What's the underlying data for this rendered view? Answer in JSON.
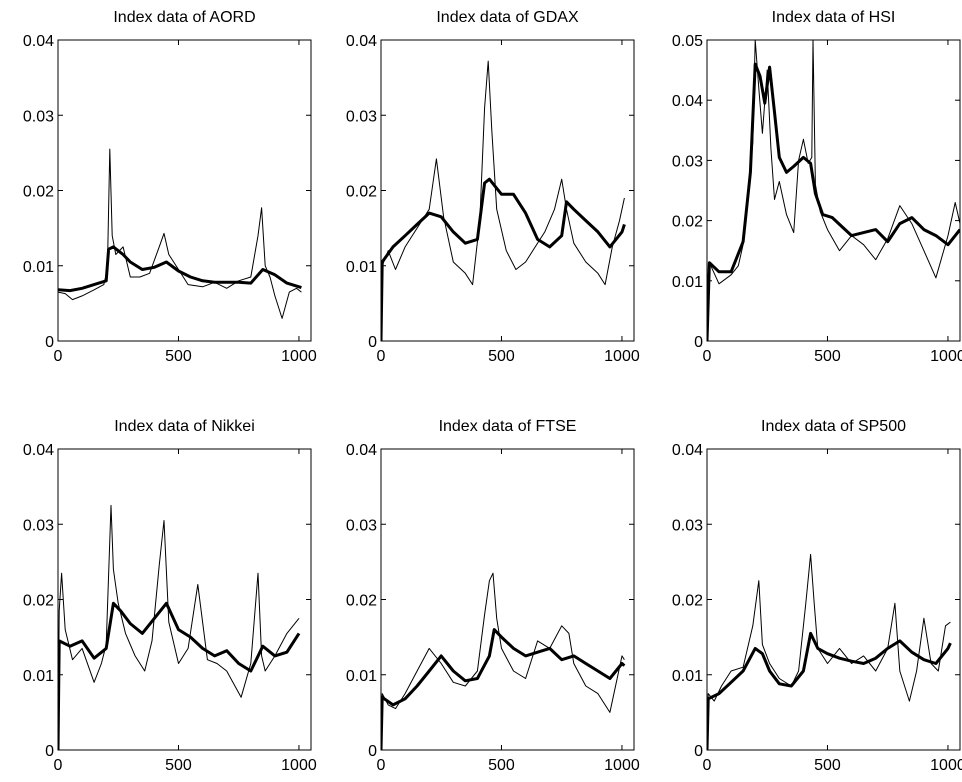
{
  "chart_data": [
    {
      "type": "line",
      "title": "Index data of AORD",
      "xlim": [
        0,
        1050
      ],
      "ylim": [
        0,
        0.04
      ],
      "xticks": [
        0,
        500,
        1000
      ],
      "yticks": [
        0,
        0.01,
        0.02,
        0.03,
        0.04
      ],
      "xtick_labels": [
        "0",
        "500",
        "1000"
      ],
      "ytick_labels": [
        "0",
        "0.01",
        "0.02",
        "0.03",
        "0.04"
      ],
      "grid": false,
      "series": [
        {
          "style": "thin",
          "x": [
            0,
            30,
            60,
            100,
            150,
            190,
            205,
            215,
            225,
            240,
            270,
            300,
            340,
            380,
            420,
            440,
            460,
            500,
            540,
            600,
            650,
            700,
            750,
            800,
            830,
            845,
            860,
            880,
            900,
            930,
            960,
            990,
            1010
          ],
          "y": [
            0.0065,
            0.0063,
            0.0055,
            0.006,
            0.0068,
            0.0075,
            0.0095,
            0.0255,
            0.014,
            0.0115,
            0.0125,
            0.0085,
            0.0085,
            0.009,
            0.0125,
            0.0143,
            0.0115,
            0.0095,
            0.0075,
            0.0072,
            0.0078,
            0.007,
            0.008,
            0.0085,
            0.014,
            0.0177,
            0.01,
            0.0085,
            0.006,
            0.003,
            0.0065,
            0.007,
            0.0065
          ]
        },
        {
          "style": "thick",
          "x": [
            0,
            50,
            100,
            150,
            200,
            210,
            230,
            270,
            300,
            350,
            400,
            450,
            500,
            550,
            600,
            650,
            700,
            750,
            800,
            850,
            900,
            950,
            1000,
            1010
          ],
          "y": [
            0.0068,
            0.0067,
            0.007,
            0.0075,
            0.008,
            0.0122,
            0.0125,
            0.0115,
            0.0105,
            0.0095,
            0.0098,
            0.0105,
            0.0093,
            0.0085,
            0.008,
            0.0078,
            0.0078,
            0.0078,
            0.0077,
            0.0095,
            0.0088,
            0.0077,
            0.0072,
            0.0071
          ]
        }
      ]
    },
    {
      "type": "line",
      "title": "Index data of GDAX",
      "xlim": [
        0,
        1050
      ],
      "ylim": [
        0,
        0.04
      ],
      "xticks": [
        0,
        500,
        1000
      ],
      "yticks": [
        0,
        0.01,
        0.02,
        0.03,
        0.04
      ],
      "xtick_labels": [
        "0",
        "500",
        "1000"
      ],
      "ytick_labels": [
        "0",
        "0.01",
        "0.02",
        "0.03",
        "0.04"
      ],
      "grid": false,
      "series": [
        {
          "style": "thin",
          "x": [
            0,
            5,
            30,
            60,
            100,
            150,
            200,
            230,
            260,
            300,
            350,
            380,
            410,
            430,
            445,
            460,
            480,
            520,
            560,
            600,
            640,
            680,
            720,
            750,
            770,
            800,
            850,
            900,
            930,
            960,
            990,
            1010
          ],
          "y": [
            0.0,
            0.01,
            0.012,
            0.0095,
            0.0125,
            0.015,
            0.0175,
            0.0242,
            0.0165,
            0.0105,
            0.009,
            0.0075,
            0.016,
            0.031,
            0.0372,
            0.028,
            0.0175,
            0.012,
            0.0095,
            0.0105,
            0.0125,
            0.0145,
            0.0175,
            0.0215,
            0.0175,
            0.013,
            0.0105,
            0.009,
            0.0075,
            0.0125,
            0.016,
            0.019
          ]
        },
        {
          "style": "thick",
          "x": [
            0,
            5,
            50,
            100,
            150,
            200,
            250,
            300,
            350,
            400,
            430,
            450,
            500,
            550,
            600,
            650,
            700,
            750,
            770,
            800,
            850,
            900,
            950,
            1000,
            1010
          ],
          "y": [
            0.0,
            0.0105,
            0.0125,
            0.014,
            0.0155,
            0.017,
            0.0165,
            0.0145,
            0.013,
            0.0135,
            0.021,
            0.0215,
            0.0195,
            0.0195,
            0.017,
            0.0135,
            0.0125,
            0.014,
            0.0185,
            0.0175,
            0.016,
            0.0145,
            0.0125,
            0.0145,
            0.0155
          ]
        }
      ]
    },
    {
      "type": "line",
      "title": "Index data of HSI",
      "xlim": [
        0,
        1050
      ],
      "ylim": [
        0,
        0.05
      ],
      "xticks": [
        0,
        500,
        1000
      ],
      "yticks": [
        0,
        0.01,
        0.02,
        0.03,
        0.04,
        0.05
      ],
      "xtick_labels": [
        "0",
        "500",
        "1000"
      ],
      "ytick_labels": [
        "0",
        "0.01",
        "0.02",
        "0.03",
        "0.04",
        "0.05"
      ],
      "grid": false,
      "series": [
        {
          "style": "thin",
          "x": [
            0,
            10,
            50,
            100,
            130,
            150,
            170,
            190,
            200,
            215,
            230,
            250,
            265,
            280,
            300,
            330,
            360,
            380,
            400,
            420,
            435,
            440,
            450,
            470,
            500,
            550,
            600,
            650,
            700,
            750,
            800,
            850,
            900,
            950,
            1000,
            1030,
            1050
          ],
          "y": [
            0.0,
            0.013,
            0.0095,
            0.011,
            0.0125,
            0.016,
            0.0245,
            0.033,
            0.05,
            0.042,
            0.0345,
            0.045,
            0.032,
            0.0235,
            0.0265,
            0.021,
            0.018,
            0.03,
            0.0335,
            0.0295,
            0.0305,
            0.05,
            0.026,
            0.0215,
            0.0185,
            0.015,
            0.0175,
            0.016,
            0.0135,
            0.017,
            0.0225,
            0.0195,
            0.015,
            0.0105,
            0.0175,
            0.023,
            0.0195
          ]
        },
        {
          "style": "thick",
          "x": [
            0,
            10,
            50,
            100,
            150,
            180,
            200,
            220,
            240,
            260,
            280,
            300,
            330,
            360,
            400,
            430,
            450,
            480,
            520,
            560,
            600,
            650,
            700,
            750,
            800,
            850,
            900,
            950,
            1000,
            1050
          ],
          "y": [
            0.0,
            0.013,
            0.0115,
            0.0115,
            0.0165,
            0.028,
            0.046,
            0.044,
            0.0395,
            0.0455,
            0.038,
            0.0305,
            0.028,
            0.029,
            0.0305,
            0.0295,
            0.0245,
            0.021,
            0.0205,
            0.019,
            0.0175,
            0.018,
            0.0185,
            0.0165,
            0.0195,
            0.0205,
            0.0185,
            0.0175,
            0.016,
            0.0185
          ]
        }
      ]
    },
    {
      "type": "line",
      "title": "Index data of Nikkei",
      "xlim": [
        0,
        1050
      ],
      "ylim": [
        0,
        0.04
      ],
      "xticks": [
        0,
        500,
        1000
      ],
      "yticks": [
        0,
        0.01,
        0.02,
        0.03,
        0.04
      ],
      "xtick_labels": [
        "0",
        "500",
        "1000"
      ],
      "ytick_labels": [
        "0",
        "0.01",
        "0.02",
        "0.03",
        "0.04"
      ],
      "grid": false,
      "series": [
        {
          "style": "thin",
          "x": [
            0,
            5,
            15,
            30,
            60,
            100,
            150,
            180,
            200,
            220,
            230,
            250,
            280,
            320,
            360,
            390,
            420,
            440,
            460,
            500,
            540,
            580,
            620,
            660,
            700,
            760,
            800,
            830,
            845,
            860,
            900,
            950,
            1000
          ],
          "y": [
            0.0,
            0.0185,
            0.0235,
            0.016,
            0.012,
            0.0135,
            0.009,
            0.0115,
            0.014,
            0.0325,
            0.024,
            0.0195,
            0.0155,
            0.0125,
            0.0105,
            0.0145,
            0.0245,
            0.0305,
            0.017,
            0.0115,
            0.0135,
            0.022,
            0.012,
            0.0115,
            0.0105,
            0.007,
            0.0115,
            0.0235,
            0.0125,
            0.0105,
            0.0125,
            0.0155,
            0.0175
          ]
        },
        {
          "style": "thick",
          "x": [
            0,
            5,
            50,
            100,
            150,
            200,
            230,
            260,
            300,
            350,
            400,
            450,
            500,
            550,
            600,
            650,
            700,
            750,
            800,
            850,
            900,
            950,
            1000
          ],
          "y": [
            0.0,
            0.0145,
            0.0138,
            0.0145,
            0.0122,
            0.0135,
            0.0195,
            0.0185,
            0.0168,
            0.0155,
            0.0175,
            0.0195,
            0.016,
            0.015,
            0.0135,
            0.0125,
            0.0132,
            0.0115,
            0.0105,
            0.0138,
            0.0125,
            0.013,
            0.0155
          ]
        }
      ]
    },
    {
      "type": "line",
      "title": "Index data of FTSE",
      "xlim": [
        0,
        1050
      ],
      "ylim": [
        0,
        0.04
      ],
      "xticks": [
        0,
        500,
        1000
      ],
      "yticks": [
        0,
        0.01,
        0.02,
        0.03,
        0.04
      ],
      "xtick_labels": [
        "0",
        "500",
        "1000"
      ],
      "ytick_labels": [
        "0",
        "0.01",
        "0.02",
        "0.03",
        "0.04"
      ],
      "grid": false,
      "series": [
        {
          "style": "thin",
          "x": [
            0,
            5,
            30,
            60,
            100,
            150,
            200,
            250,
            300,
            350,
            400,
            430,
            450,
            465,
            480,
            500,
            550,
            600,
            650,
            700,
            750,
            780,
            800,
            850,
            900,
            950,
            1000,
            1010
          ],
          "y": [
            0.0,
            0.0075,
            0.006,
            0.0055,
            0.0075,
            0.0105,
            0.0135,
            0.0115,
            0.009,
            0.0085,
            0.0105,
            0.018,
            0.0225,
            0.0235,
            0.0175,
            0.0135,
            0.0105,
            0.0095,
            0.0145,
            0.0135,
            0.0165,
            0.0155,
            0.0115,
            0.0085,
            0.0075,
            0.005,
            0.0125,
            0.012
          ]
        },
        {
          "style": "thick",
          "x": [
            0,
            5,
            50,
            100,
            150,
            200,
            250,
            300,
            350,
            400,
            450,
            470,
            500,
            550,
            600,
            650,
            700,
            750,
            800,
            850,
            900,
            950,
            1000,
            1010
          ],
          "y": [
            0.0,
            0.007,
            0.006,
            0.0068,
            0.0085,
            0.0105,
            0.0125,
            0.0105,
            0.0092,
            0.0095,
            0.0125,
            0.016,
            0.015,
            0.0135,
            0.0125,
            0.013,
            0.0135,
            0.012,
            0.0125,
            0.0115,
            0.0105,
            0.0095,
            0.0115,
            0.0112
          ]
        }
      ]
    },
    {
      "type": "line",
      "title": "Index data of SP500",
      "xlim": [
        0,
        1050
      ],
      "ylim": [
        0,
        0.04
      ],
      "xticks": [
        0,
        500,
        1000
      ],
      "yticks": [
        0,
        0.01,
        0.02,
        0.03,
        0.04
      ],
      "xtick_labels": [
        "0",
        "500",
        "1000"
      ],
      "ytick_labels": [
        "0",
        "0.01",
        "0.02",
        "0.03",
        "0.04"
      ],
      "grid": false,
      "series": [
        {
          "style": "thin",
          "x": [
            0,
            5,
            30,
            60,
            100,
            150,
            190,
            215,
            230,
            260,
            300,
            350,
            380,
            410,
            430,
            445,
            460,
            500,
            550,
            600,
            650,
            700,
            750,
            780,
            800,
            840,
            870,
            900,
            930,
            960,
            990,
            1010
          ],
          "y": [
            0.0,
            0.0075,
            0.0065,
            0.0085,
            0.0105,
            0.011,
            0.0165,
            0.0225,
            0.014,
            0.0115,
            0.0095,
            0.0085,
            0.0105,
            0.0195,
            0.026,
            0.0195,
            0.0135,
            0.0115,
            0.0135,
            0.0115,
            0.0125,
            0.0105,
            0.0135,
            0.0195,
            0.0105,
            0.0065,
            0.0105,
            0.0175,
            0.0115,
            0.0105,
            0.0165,
            0.017
          ]
        },
        {
          "style": "thick",
          "x": [
            0,
            5,
            50,
            100,
            150,
            200,
            230,
            260,
            300,
            350,
            400,
            430,
            460,
            500,
            550,
            600,
            650,
            700,
            750,
            800,
            850,
            900,
            950,
            1000,
            1010
          ],
          "y": [
            0.0,
            0.0068,
            0.0075,
            0.009,
            0.0105,
            0.0135,
            0.0128,
            0.0105,
            0.0088,
            0.0085,
            0.0105,
            0.0155,
            0.0135,
            0.0128,
            0.0122,
            0.0118,
            0.0115,
            0.0122,
            0.0135,
            0.0145,
            0.013,
            0.012,
            0.0115,
            0.0135,
            0.0142
          ]
        }
      ]
    }
  ]
}
